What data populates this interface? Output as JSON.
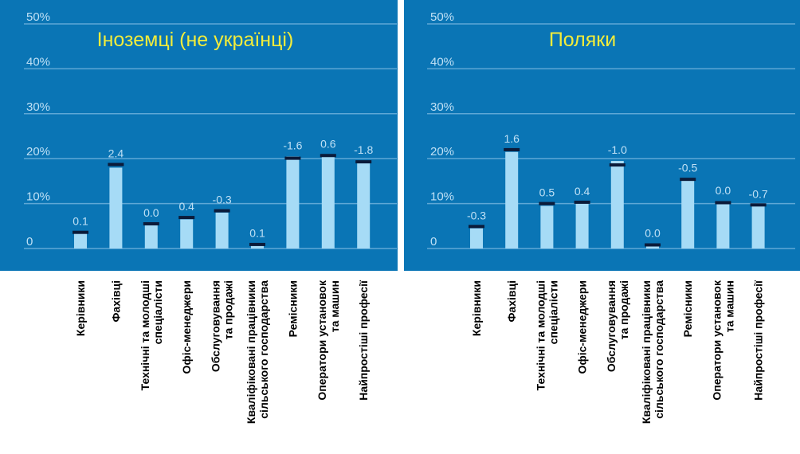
{
  "chart_data": [
    {
      "type": "bar",
      "title": "Іноземці (не українці)",
      "ylim": [
        0,
        50
      ],
      "yticks": [
        "0",
        "10%",
        "20%",
        "30%",
        "40%",
        "50%"
      ],
      "categories": [
        "Керівники",
        "Фахівці",
        "Технічні та молодші спеціалісти",
        "Офіс-менеджери",
        "Обслуговування та продажі",
        "Кваліфіковані працівники сільського господарства",
        "Ремісники",
        "Оператори установок та машин",
        "Найпростіші професії"
      ],
      "category_lines": [
        [
          "Керівники"
        ],
        [
          "Фахівці"
        ],
        [
          "Технічні та молодші",
          "спеціалісти"
        ],
        [
          "Офіс-менеджери"
        ],
        [
          "Обслуговування",
          "та продажі"
        ],
        [
          "Кваліфіковані працівники",
          "сільського господарства"
        ],
        [
          "Ремісники"
        ],
        [
          "Оператори установок",
          "та машин"
        ],
        [
          "Найпростіші професії"
        ]
      ],
      "values": [
        3.5,
        18.0,
        5.5,
        6.5,
        8.0,
        1.0,
        20.5,
        20.8,
        19.5
      ],
      "marker_values": [
        3.6,
        18.7,
        5.5,
        6.9,
        8.4,
        0.9,
        20.1,
        20.7,
        19.3
      ],
      "labels": [
        "0.1",
        "2.4",
        "0.0",
        "0.4",
        "-0.3",
        "0.1",
        "-1.6",
        "0.6",
        "-1.8"
      ],
      "colors": {
        "background": "#0A75B5",
        "bar": "#A6DBF6",
        "marker": "#0B1B3A",
        "title": "#F2EC3B",
        "grid": "#5FA8D6",
        "text": "#BFE0F5"
      }
    },
    {
      "type": "bar",
      "title": "Поляки",
      "ylim": [
        0,
        50
      ],
      "yticks": [
        "0",
        "10%",
        "20%",
        "30%",
        "40%",
        "50%"
      ],
      "categories": [
        "Керівники",
        "Фахівці",
        "Технічні та молодші спеціалісти",
        "Офіс-менеджери",
        "Обслуговування та продажі",
        "Кваліфіковані працівники сільського господарства",
        "Ремісники",
        "Оператори установок та машин",
        "Найпростіші професії"
      ],
      "category_lines": [
        [
          "Керівники"
        ],
        [
          "Фахівці"
        ],
        [
          "Технічні та молодші",
          "спеціалісти"
        ],
        [
          "Офіс-менеджери"
        ],
        [
          "Обслуговування",
          "та продажі"
        ],
        [
          "Кваліфіковані працівники",
          "сільського господарства"
        ],
        [
          "Ремісники"
        ],
        [
          "Оператори установок",
          "та машин"
        ],
        [
          "Найпростіші професії"
        ]
      ],
      "values": [
        4.5,
        21.5,
        9.5,
        10.0,
        19.5,
        1.0,
        15.5,
        10.5,
        9.5
      ],
      "marker_values": [
        4.9,
        22.0,
        10.0,
        10.3,
        18.6,
        0.8,
        15.4,
        10.2,
        9.7
      ],
      "labels": [
        "-0.3",
        "1.6",
        "0.5",
        "0.4",
        "-1.0",
        "0.0",
        "-0.5",
        "0.0",
        "-0.7"
      ],
      "colors": {
        "background": "#0A75B5",
        "bar": "#A6DBF6",
        "marker": "#0B1B3A",
        "title": "#F2EC3B",
        "grid": "#5FA8D6",
        "text": "#BFE0F5"
      }
    }
  ]
}
